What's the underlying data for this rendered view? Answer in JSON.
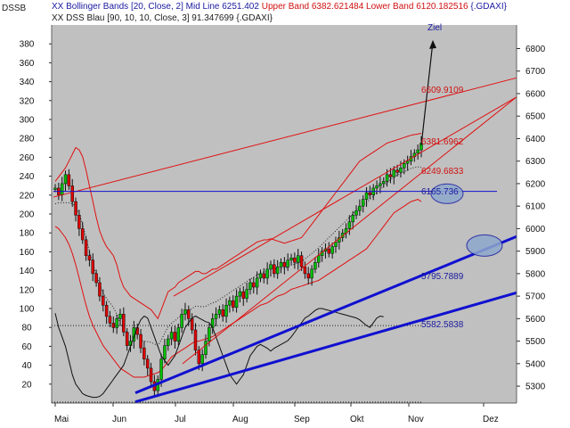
{
  "header": {
    "symbol": "DSSB",
    "line1_prefix": "XX Bollinger Bands [20, Close, 2] Mid Line 6251.402",
    "line1_upper": "Upper Band 6382.621484",
    "line1_lower": "Lower Band 6120.182516",
    "line1_suffix": "{.GDAXI}",
    "line2": "XX DSS Blau [90, 10, 10, Close, 3] 91.347699 {.GDAXI}"
  },
  "colors": {
    "plot_bg": "#c0c0c0",
    "up_candle": "#00c000",
    "down_candle": "#e00000",
    "bollinger": "#e01010",
    "channel": "#e01010",
    "support": "#1010d0",
    "dss": "#101010",
    "annotation_red": "#d01010",
    "annotation_blue": "#1a1aa0"
  },
  "chart_data": {
    "type": "candlestick",
    "title": "",
    "x_ticks": [
      "Mai",
      "Jun",
      "Jul",
      "Aug",
      "Sep",
      "Okt",
      "Nov",
      "Dez"
    ],
    "left_axis": {
      "label": "",
      "range": [
        0,
        400
      ],
      "ticks": [
        20,
        40,
        60,
        80,
        100,
        120,
        140,
        160,
        180,
        200,
        220,
        240,
        260,
        280,
        300,
        320,
        340,
        360,
        380
      ]
    },
    "right_axis": {
      "label": "",
      "range": [
        5225,
        6905
      ],
      "ticks": [
        5300,
        5400,
        5500,
        5600,
        5700,
        5800,
        5900,
        6000,
        6100,
        6200,
        6300,
        6400,
        6500,
        6600,
        6700,
        6800
      ]
    },
    "price_close": [
      6180,
      6150,
      6200,
      6240,
      6190,
      6120,
      6060,
      6000,
      5950,
      5880,
      5860,
      5800,
      5760,
      5700,
      5660,
      5610,
      5580,
      5560,
      5600,
      5620,
      5540,
      5480,
      5500,
      5560,
      5530,
      5470,
      5420,
      5380,
      5320,
      5280,
      5330,
      5420,
      5480,
      5510,
      5540,
      5500,
      5560,
      5620,
      5640,
      5600,
      5550,
      5460,
      5400,
      5440,
      5500,
      5560,
      5600,
      5620,
      5640,
      5610,
      5660,
      5680,
      5650,
      5700,
      5720,
      5690,
      5730,
      5760,
      5740,
      5780,
      5800,
      5780,
      5820,
      5840,
      5800,
      5830,
      5850,
      5830,
      5860,
      5870,
      5850,
      5880,
      5830,
      5800,
      5780,
      5820,
      5850,
      5880,
      5900,
      5910,
      5890,
      5920,
      5940,
      5960,
      5980,
      6000,
      6030,
      6060,
      6080,
      6100,
      6130,
      6160,
      6150,
      6180,
      6190,
      6200,
      6210,
      6240,
      6230,
      6260,
      6250,
      6270,
      6290,
      6300,
      6320,
      6335,
      6350,
      6380
    ],
    "bollinger_upper": [
      6210,
      6230,
      6250,
      6270,
      6300,
      6330,
      6360,
      6350,
      6320,
      6260,
      6190,
      6120,
      6050,
      5990,
      5950,
      5920,
      5900,
      5880,
      5840,
      5780,
      5740,
      5720,
      5700,
      5690,
      5680,
      5670,
      5660,
      5650,
      5640,
      5620,
      5600,
      5640,
      5680,
      5720,
      5730,
      5740,
      5760,
      5770,
      5780,
      5790,
      5800,
      5810,
      5810,
      5800,
      5800,
      5810,
      5820,
      5820,
      5830,
      5840,
      5850,
      5860,
      5870,
      5880,
      5890,
      5900,
      5910,
      5920,
      5930,
      5940,
      5945,
      5950,
      5950,
      5955,
      5950,
      5945,
      5940,
      5935,
      5940,
      5945,
      5950,
      5955,
      5960,
      5980,
      6000,
      6020,
      6040,
      6060,
      6080,
      6100,
      6120,
      6140,
      6160,
      6180,
      6200,
      6220,
      6240,
      6260,
      6280,
      6300,
      6310,
      6320,
      6330,
      6340,
      6350,
      6360,
      6370,
      6380,
      6385,
      6390,
      6395,
      6400,
      6405,
      6410,
      6415,
      6418,
      6420,
      6424
    ],
    "bollinger_lower": [
      6010,
      6000,
      5980,
      5960,
      5930,
      5890,
      5840,
      5780,
      5720,
      5660,
      5610,
      5570,
      5540,
      5510,
      5480,
      5460,
      5440,
      5420,
      5400,
      5380,
      5370,
      5360,
      5350,
      5340,
      5340,
      5340,
      5340,
      5345,
      5350,
      5355,
      5360,
      5370,
      5390,
      5410,
      5430,
      5440,
      5450,
      5460,
      5470,
      5480,
      5490,
      5500,
      5500,
      5505,
      5510,
      5515,
      5520,
      5530,
      5540,
      5550,
      5560,
      5570,
      5580,
      5590,
      5600,
      5610,
      5620,
      5630,
      5640,
      5650,
      5660,
      5665,
      5670,
      5680,
      5690,
      5700,
      5705,
      5710,
      5720,
      5730,
      5735,
      5740,
      5745,
      5750,
      5755,
      5760,
      5765,
      5770,
      5780,
      5790,
      5800,
      5810,
      5820,
      5830,
      5840,
      5850,
      5860,
      5870,
      5880,
      5890,
      5900,
      5910,
      5930,
      5950,
      5970,
      5990,
      6010,
      6030,
      6050,
      6070,
      6080,
      6090,
      6100,
      6110,
      6120,
      6125,
      6130,
      6120
    ],
    "dss_values": [
      95,
      80,
      70,
      60,
      45,
      30,
      20,
      15,
      10,
      8,
      7,
      6,
      6,
      7,
      10,
      15,
      20,
      25,
      30,
      35,
      40,
      50,
      60,
      70,
      80,
      88,
      92,
      90,
      80,
      70,
      60,
      50,
      45,
      40,
      45,
      50,
      60,
      70,
      80,
      85,
      90,
      92,
      90,
      88,
      86,
      85,
      80,
      70,
      60,
      50,
      40,
      30,
      25,
      20,
      25,
      30,
      40,
      50,
      55,
      60,
      62,
      60,
      58,
      55,
      58,
      60,
      62,
      64,
      66,
      70,
      75,
      80,
      85,
      90,
      92,
      95,
      98,
      100,
      100,
      99,
      98,
      97,
      96,
      95,
      94,
      93,
      92,
      91,
      90,
      88,
      85,
      82,
      80,
      85,
      90,
      92,
      91.35
    ],
    "annotations": [
      {
        "text": "Ziel",
        "color": "blue"
      },
      {
        "text": "6609.9109",
        "color": "red"
      },
      {
        "text": "6381.6962",
        "color": "red"
      },
      {
        "text": "6249.6833",
        "color": "red"
      },
      {
        "text": "6165.736",
        "color": "blue"
      },
      {
        "text": "5795.7889",
        "color": "blue"
      },
      {
        "text": "5582.5838",
        "color": "blue"
      }
    ],
    "horizontal_line": 6165.736,
    "grid": false,
    "legend": "top-left header text"
  }
}
